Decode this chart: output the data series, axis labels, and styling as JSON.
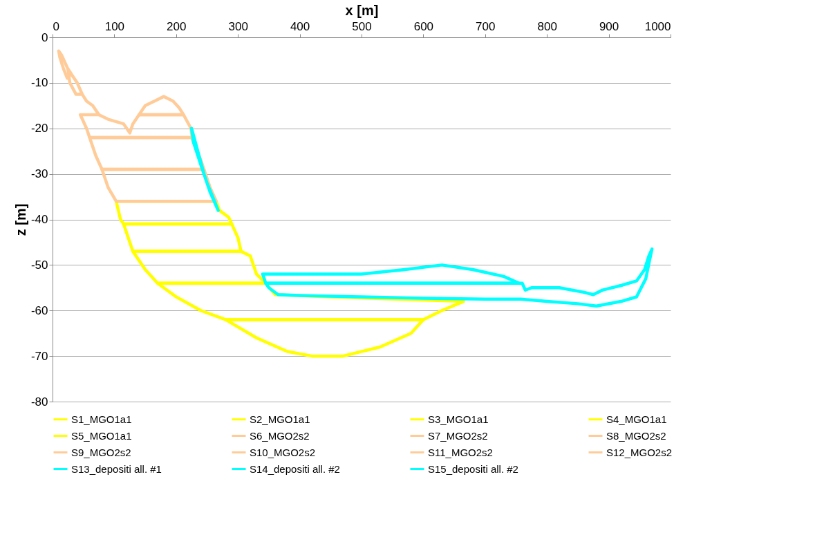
{
  "chart_data": {
    "type": "line",
    "xlabel": "x [m]",
    "ylabel": "z [m]",
    "xlim": [
      0,
      1000
    ],
    "xticks": [
      0,
      100,
      200,
      300,
      400,
      500,
      600,
      700,
      800,
      900,
      {
        "value": 1000,
        "label": "1000"
      }
    ],
    "ylim": [
      -80,
      0
    ],
    "yticks": [
      -80,
      -70,
      -60,
      -50,
      -40,
      -30,
      -20,
      -10,
      0
    ],
    "grid": "y",
    "legend": "bottom",
    "line_style": "solid",
    "series": [
      {
        "name": "S1_MGO1a1",
        "color": "#ffff00",
        "x": [
          280,
          330,
          380,
          420,
          470,
          530,
          580,
          600,
          null,
          280,
          600
        ],
        "values": [
          -62,
          -66,
          -69,
          -70,
          -70,
          -68,
          -65,
          -62,
          null,
          -62,
          -62
        ]
      },
      {
        "name": "S2_MGO1a1",
        "color": "#ffff00",
        "x": [
          170,
          200,
          240,
          280,
          600,
          630,
          665,
          null,
          170,
          345,
          360,
          450,
          665
        ],
        "values": [
          -54,
          -57,
          -60,
          -62,
          -62,
          -60,
          -58,
          null,
          -54,
          -54,
          -56.5,
          -57,
          -58
        ]
      },
      {
        "name": "S3_MGO1a1",
        "color": "#ffff00",
        "x": [
          130,
          150,
          170,
          345,
          null,
          130,
          305,
          320,
          330,
          345
        ],
        "values": [
          -47,
          -51,
          -54,
          -54,
          null,
          -47,
          -47,
          -48,
          -52,
          -54
        ]
      },
      {
        "name": "S4_MGO1a1",
        "color": "#ffff00",
        "x": [
          115,
          120,
          130,
          305,
          null,
          115,
          290,
          300,
          305
        ],
        "values": [
          -41,
          -43,
          -47,
          -47,
          null,
          -41,
          -41,
          -44,
          -47
        ]
      },
      {
        "name": "S5_MGO1a1",
        "color": "#ffff00",
        "x": [
          103,
          110,
          115,
          290,
          null,
          103,
          265,
          270,
          285,
          290
        ],
        "values": [
          -36,
          -40,
          -41,
          -41,
          null,
          -36,
          -36,
          -38,
          -39.5,
          -41
        ]
      },
      {
        "name": "S6_MGO2s2",
        "color": "#ffcc99",
        "x": [
          80,
          90,
          103,
          265,
          null,
          80,
          245,
          255,
          265
        ],
        "values": [
          -29,
          -33,
          -36,
          -36,
          null,
          -29,
          -29,
          -33,
          -36
        ]
      },
      {
        "name": "S7_MGO2s2",
        "color": "#ffcc99",
        "x": [
          60,
          70,
          80,
          245,
          null,
          60,
          225,
          240,
          245
        ],
        "values": [
          -22,
          -26,
          -29,
          -29,
          null,
          -22,
          -22,
          -27,
          -29
        ]
      },
      {
        "name": "S8_MGO2s2",
        "color": "#ffcc99",
        "x": [
          45,
          55,
          60,
          226,
          null,
          45,
          75,
          90,
          115,
          125,
          130,
          140,
          212,
          224,
          226
        ],
        "values": [
          -17,
          -20,
          -22,
          -22,
          null,
          -17,
          -17,
          -18,
          -19,
          -21,
          -19,
          -17,
          -17,
          -20,
          -22
        ]
      },
      {
        "name": "S9_MGO2s2",
        "color": "#ffcc99",
        "x": [
          140,
          212,
          null,
          140,
          150,
          165,
          180,
          195,
          205,
          212
        ],
        "values": [
          -17,
          -17,
          null,
          -17,
          -15,
          -14,
          -13,
          -14,
          -15.5,
          -17
        ]
      },
      {
        "name": "S10_MGO2s2",
        "color": "#ffcc99",
        "x": [
          38,
          48,
          55,
          65,
          75
        ],
        "values": [
          -12.5,
          -12.5,
          -14,
          -15,
          -17
        ]
      },
      {
        "name": "S11_MGO2s2",
        "color": "#ffcc99",
        "x": [
          25,
          28,
          38,
          48,
          null,
          25,
          30,
          40,
          48
        ],
        "values": [
          -7,
          -10,
          -12.5,
          -12.5,
          null,
          -7,
          -8,
          -10,
          -12.5
        ]
      },
      {
        "name": "S12_MGO2s2",
        "color": "#ffcc99",
        "x": [
          10,
          12,
          18,
          24,
          30,
          null,
          10,
          15,
          25,
          30
        ],
        "values": [
          -3,
          -4.5,
          -7,
          -9,
          -8,
          null,
          -3,
          -4,
          -7,
          -8
        ]
      },
      {
        "name": "S13_depositi all. #1",
        "color": "#00ffff",
        "x": [
          225,
          228,
          240,
          250,
          262,
          268,
          null,
          225,
          235,
          245,
          255,
          268
        ],
        "values": [
          -20,
          -23,
          -28,
          -32,
          -36,
          -38,
          null,
          -20,
          -25,
          -30,
          -34,
          -38
        ]
      },
      {
        "name": "S14_depositi all. #2",
        "color": "#00ffff",
        "x": [
          340,
          400,
          500,
          570,
          630,
          680,
          730,
          755,
          null,
          340,
          345,
          755
        ],
        "values": [
          -52,
          -52,
          -52,
          -51,
          -50,
          -51,
          -52.5,
          -54,
          null,
          -52,
          -54,
          -54
        ]
      },
      {
        "name": "S15_depositi all. #2",
        "color": "#00ffff",
        "x": [
          345,
          760,
          765,
          775,
          820,
          860,
          875,
          890,
          920,
          945,
          958,
          965,
          970,
          null,
          345,
          350,
          365,
          400,
          500,
          600,
          700,
          758,
          800,
          850,
          880,
          920,
          945,
          960,
          966,
          970
        ],
        "values": [
          -54,
          -54,
          -55.5,
          -55,
          -55,
          -56,
          -56.5,
          -55.5,
          -54.5,
          -53.5,
          -51,
          -48,
          -46.5,
          null,
          -54,
          -55,
          -56.5,
          -56.7,
          -57,
          -57.3,
          -57.5,
          -57.5,
          -58,
          -58.5,
          -59,
          -58,
          -57,
          -53,
          -49,
          -46.5
        ]
      }
    ]
  }
}
